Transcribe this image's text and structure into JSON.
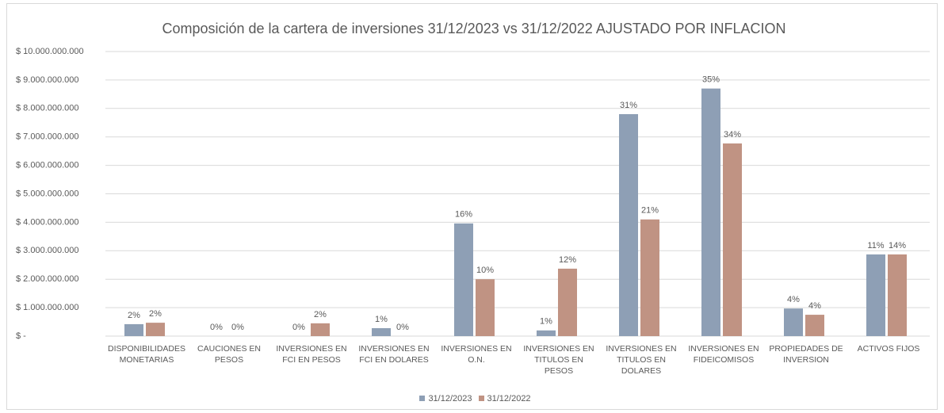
{
  "chart_data": {
    "type": "bar",
    "title": "Composición de la cartera de inversiones 31/12/2023 vs 31/12/2022 AJUSTADO POR INFLACION",
    "categories": [
      "DISPONIBILIDADES MONETARIAS",
      "CAUCIONES EN PESOS",
      "INVERSIONES EN FCI EN PESOS",
      "INVERSIONES EN FCI EN DOLARES",
      "INVERSIONES EN O.N.",
      "INVERSIONES EN TITULOS EN PESOS",
      "INVERSIONES EN TITULOS EN DOLARES",
      "INVERSIONES EN FIDEICOMISOS",
      "PROPIEDADES DE INVERSION",
      "ACTIVOS FIJOS"
    ],
    "series": [
      {
        "name": "31/12/2023",
        "color": "#8e9fb5",
        "values": [
          420000000,
          0,
          0,
          280000000,
          3960000000,
          200000000,
          7800000000,
          8700000000,
          970000000,
          2870000000
        ],
        "labels": [
          "2%",
          "0%",
          "0%",
          "1%",
          "16%",
          "1%",
          "31%",
          "35%",
          "4%",
          "11%"
        ]
      },
      {
        "name": "31/12/2022",
        "color": "#c09383",
        "values": [
          470000000,
          0,
          450000000,
          0,
          2000000000,
          2370000000,
          4100000000,
          6770000000,
          750000000,
          2870000000
        ],
        "labels": [
          "2%",
          "0%",
          "2%",
          "0%",
          "10%",
          "12%",
          "21%",
          "34%",
          "4%",
          "14%"
        ]
      }
    ],
    "ylim": [
      0,
      10000000000
    ],
    "yticks": [
      {
        "value": 0,
        "label": "$ -"
      },
      {
        "value": 1000000000,
        "label": "$ 1.000.000.000"
      },
      {
        "value": 2000000000,
        "label": "$ 2.000.000.000"
      },
      {
        "value": 3000000000,
        "label": "$ 3.000.000.000"
      },
      {
        "value": 4000000000,
        "label": "$ 4.000.000.000"
      },
      {
        "value": 5000000000,
        "label": "$ 5.000.000.000"
      },
      {
        "value": 6000000000,
        "label": "$ 6.000.000.000"
      },
      {
        "value": 7000000000,
        "label": "$ 7.000.000.000"
      },
      {
        "value": 8000000000,
        "label": "$ 8.000.000.000"
      },
      {
        "value": 9000000000,
        "label": "$ 9.000.000.000"
      },
      {
        "value": 10000000000,
        "label": "$ 10.000.000.000"
      }
    ],
    "grid": true,
    "legend": "bottom"
  }
}
